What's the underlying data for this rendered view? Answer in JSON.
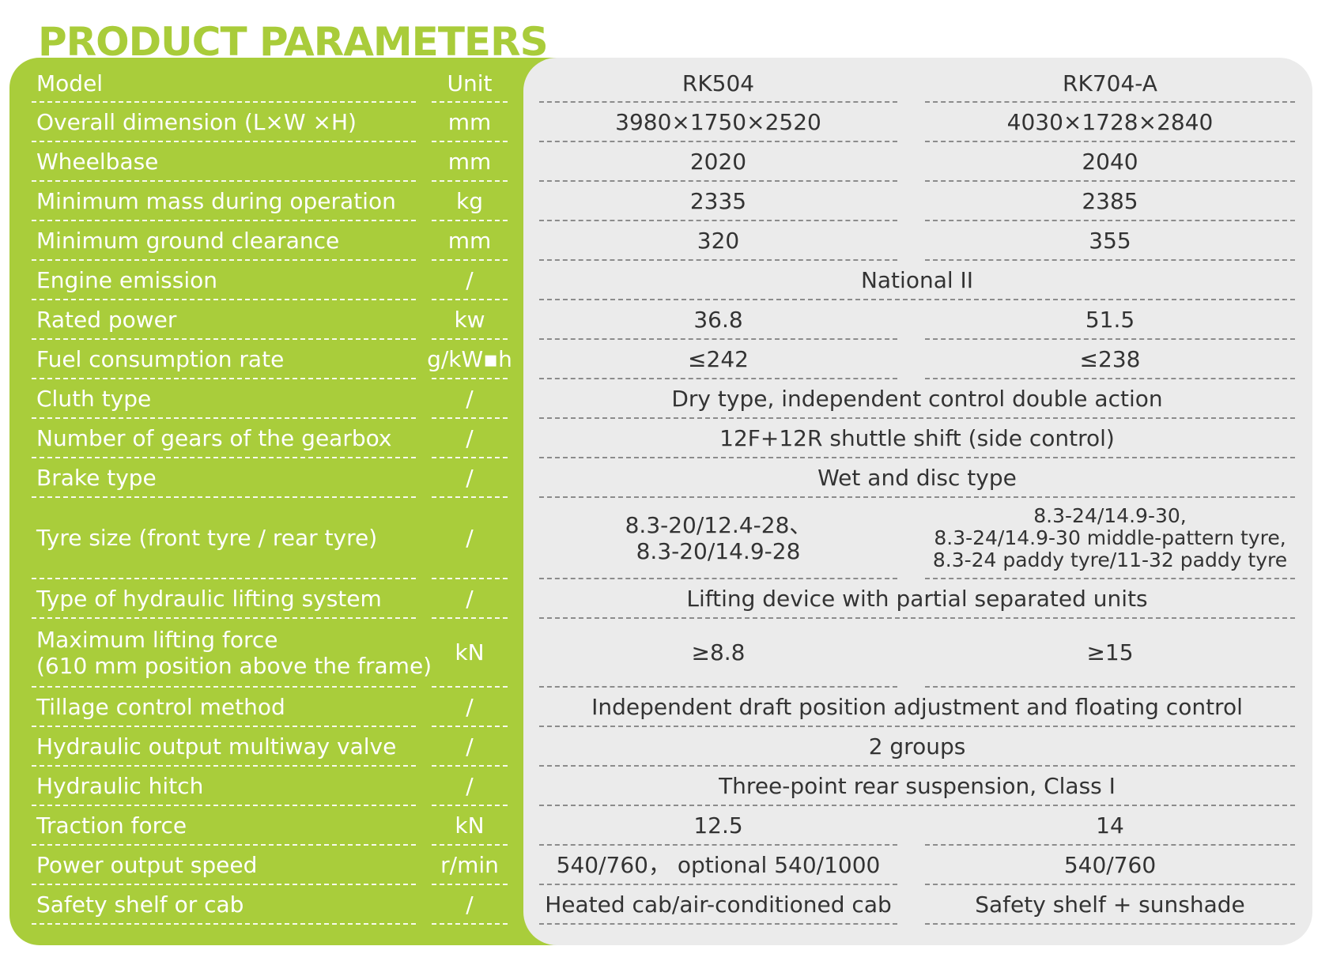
{
  "title": "PRODUCT PARAMETERS",
  "colors": {
    "accent": "#a9cd3b",
    "panel": "#ebebeb",
    "value_text": "#333333"
  },
  "header": {
    "param": "Model",
    "unit": "Unit",
    "v1": "RK504",
    "v2": "RK704-A"
  },
  "rows": [
    {
      "param": "Overall dimension (L×W ×H)",
      "unit": "mm",
      "v1": "3980×1750×2520",
      "v2": "4030×1728×2840"
    },
    {
      "param": "Wheelbase",
      "unit": "mm",
      "v1": "2020",
      "v2": "2040"
    },
    {
      "param": "Minimum mass during operation",
      "unit": "kg",
      "v1": "2335",
      "v2": "2385"
    },
    {
      "param": "Minimum ground clearance",
      "unit": "mm",
      "v1": "320",
      "v2": "355"
    },
    {
      "param": "Engine emission",
      "unit": "/",
      "span": "National II"
    },
    {
      "param": "Rated power",
      "unit": "kw",
      "v1": "36.8",
      "v2": "51.5"
    },
    {
      "param": "Fuel consumption rate",
      "unit": "g/kW▪h",
      "v1": "≤242",
      "v2": "≤238"
    },
    {
      "param": "Cluth type",
      "unit": "/",
      "span": "Dry type, independent control double action"
    },
    {
      "param": "Number of gears of the gearbox",
      "unit": "/",
      "span": "12F+12R shuttle shift (side control)"
    },
    {
      "param": "Brake type",
      "unit": "/",
      "span": "Wet and disc type"
    },
    {
      "param": "Tyre size (front tyre / rear tyre)",
      "unit": "/",
      "v1_lines": [
        "8.3-20/12.4-28、",
        "8.3-20/14.9-28"
      ],
      "v2_lines": [
        "8.3-24/14.9-30,",
        "8.3-24/14.9-30 middle-pattern tyre,",
        "8.3-24 paddy tyre/11-32 paddy tyre"
      ]
    },
    {
      "param": "Type of hydraulic lifting system",
      "unit": "/",
      "span": "Lifting device with partial separated units"
    },
    {
      "param_lines": [
        "Maximum lifting force",
        "(610 mm position above the frame)"
      ],
      "unit": "kN",
      "v1": "≥8.8",
      "v2": "≥15"
    },
    {
      "param": "Tillage control method",
      "unit": "/",
      "span": "Independent draft position adjustment and floating control"
    },
    {
      "param": "Hydraulic output multiway valve",
      "unit": "/",
      "span": "2 groups"
    },
    {
      "param": "Hydraulic hitch",
      "unit": "/",
      "span": "Three-point rear suspension, Class I"
    },
    {
      "param": "Traction force",
      "unit": "kN",
      "v1": "12.5",
      "v2": "14"
    },
    {
      "param": "Power output speed",
      "unit": "r/min",
      "v1": "540/760， optional 540/1000",
      "v2": "540/760"
    },
    {
      "param": "Safety shelf or cab",
      "unit": "/",
      "v1": "Heated cab/air-conditioned cab",
      "v2": "Safety shelf + sunshade"
    }
  ]
}
